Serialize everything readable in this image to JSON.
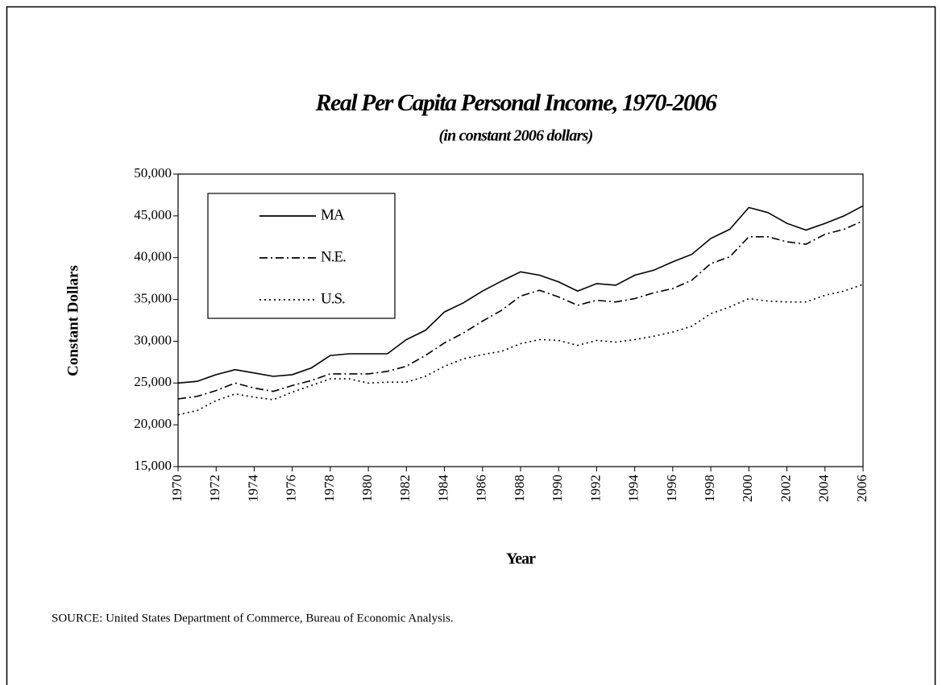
{
  "chart_data": {
    "type": "line",
    "title": "Real Per Capita Personal Income, 1970-2006",
    "subtitle": "(in constant 2006 dollars)",
    "y_label": "Constant Dollars",
    "x_label": "Year",
    "source": "SOURCE:  United States Department of Commerce, Bureau of Economic Analysis.",
    "x": [
      1970,
      1971,
      1972,
      1973,
      1974,
      1975,
      1976,
      1977,
      1978,
      1979,
      1980,
      1981,
      1982,
      1983,
      1984,
      1985,
      1986,
      1987,
      1988,
      1989,
      1990,
      1991,
      1992,
      1993,
      1994,
      1995,
      1996,
      1997,
      1998,
      1999,
      2000,
      2001,
      2002,
      2003,
      2004,
      2005,
      2006
    ],
    "xlim": [
      1970,
      2006
    ],
    "xticks": [
      1970,
      1972,
      1974,
      1976,
      1978,
      1980,
      1982,
      1984,
      1986,
      1988,
      1990,
      1992,
      1994,
      1996,
      1998,
      2000,
      2002,
      2004,
      2006
    ],
    "ylim": [
      15000,
      50000
    ],
    "yticks": [
      {
        "value": 15000,
        "label": "15,000"
      },
      {
        "value": 20000,
        "label": "20,000"
      },
      {
        "value": 25000,
        "label": "25,000"
      },
      {
        "value": 30000,
        "label": "30,000"
      },
      {
        "value": 35000,
        "label": "35,000"
      },
      {
        "value": 40000,
        "label": "40,000"
      },
      {
        "value": 45000,
        "label": "45,000"
      },
      {
        "value": 50000,
        "label": "50,000"
      }
    ],
    "grid": false,
    "legend": "upper left",
    "series": [
      {
        "name": "MA",
        "color": "#000000",
        "line_style": "solid",
        "values": [
          25000,
          25200,
          26000,
          26600,
          26200,
          25800,
          26000,
          26800,
          28300,
          28500,
          28500,
          28500,
          30200,
          31300,
          33500,
          34600,
          36000,
          37200,
          38300,
          37900,
          37100,
          36000,
          36900,
          36700,
          37900,
          38500,
          39500,
          40400,
          42300,
          43400,
          46000,
          45400,
          44100,
          43300,
          44100,
          45000,
          46200
        ]
      },
      {
        "name": "N.E.",
        "color": "#000000",
        "line_style": "dashdot",
        "values": [
          23100,
          23400,
          24100,
          25000,
          24400,
          24000,
          24700,
          25300,
          26100,
          26100,
          26100,
          26400,
          27000,
          28300,
          29800,
          31000,
          32400,
          33700,
          35400,
          36100,
          35300,
          34300,
          34900,
          34700,
          35100,
          35800,
          36300,
          37300,
          39300,
          40100,
          42500,
          42500,
          41900,
          41600,
          42800,
          43400,
          44400
        ]
      },
      {
        "name": "U.S.",
        "color": "#000000",
        "line_style": "dotted",
        "values": [
          21200,
          21700,
          22900,
          23700,
          23300,
          23000,
          23900,
          24700,
          25500,
          25500,
          25000,
          25100,
          25100,
          25800,
          27000,
          27900,
          28400,
          28800,
          29700,
          30200,
          30100,
          29500,
          30100,
          29900,
          30200,
          30600,
          31100,
          31800,
          33300,
          34100,
          35100,
          34800,
          34700,
          34700,
          35500,
          36000,
          36800
        ]
      }
    ]
  }
}
